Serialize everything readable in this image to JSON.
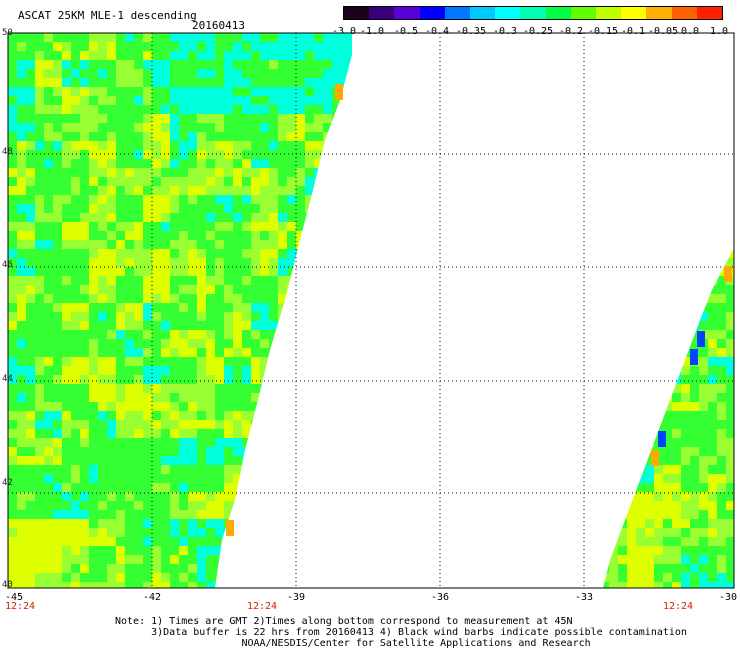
{
  "header": {
    "title": "ASCAT 25KM MLE-1 descending",
    "date": "20160413"
  },
  "colorbar": {
    "labels": [
      "-3.0",
      "-1.0",
      "-0.5",
      "-0.4",
      "-0.35",
      "-0.3",
      "-0.25",
      "-0.2",
      "-0.15",
      "-0.1",
      "-0.05",
      "0.0",
      "1.0"
    ],
    "colors": [
      "#1a001a",
      "#3a007a",
      "#5a00d8",
      "#0000ff",
      "#0078ff",
      "#00c8ff",
      "#00ffff",
      "#00ffb0",
      "#00ff40",
      "#60ff00",
      "#c0ff00",
      "#ffff00",
      "#ffb000",
      "#ff6000",
      "#ff2000"
    ]
  },
  "map": {
    "latitudes": [
      "50",
      "48",
      "46",
      "44",
      "42",
      "40"
    ],
    "longitudes": [
      "-45",
      "-42",
      "-39",
      "-36",
      "-33",
      "-30"
    ],
    "times": [
      "12:24",
      "12:24",
      "12:24"
    ],
    "swath_colors": {
      "dominant": "#33ff33",
      "light": "#99ff33",
      "yellow": "#ddff00",
      "cyan": "#00ffdd",
      "orange": "#ffaa00",
      "blue": "#0044ff"
    }
  },
  "notes": {
    "line1": "Note: 1) Times are GMT 2)Times along bottom correspond to measurement at 45N",
    "line2": "3)Data buffer is 22 hrs from 20160413 4) Black wind barbs indicate possible contamination",
    "line3": "NOAA/NESDIS/Center for Satellite Applications and Research"
  }
}
